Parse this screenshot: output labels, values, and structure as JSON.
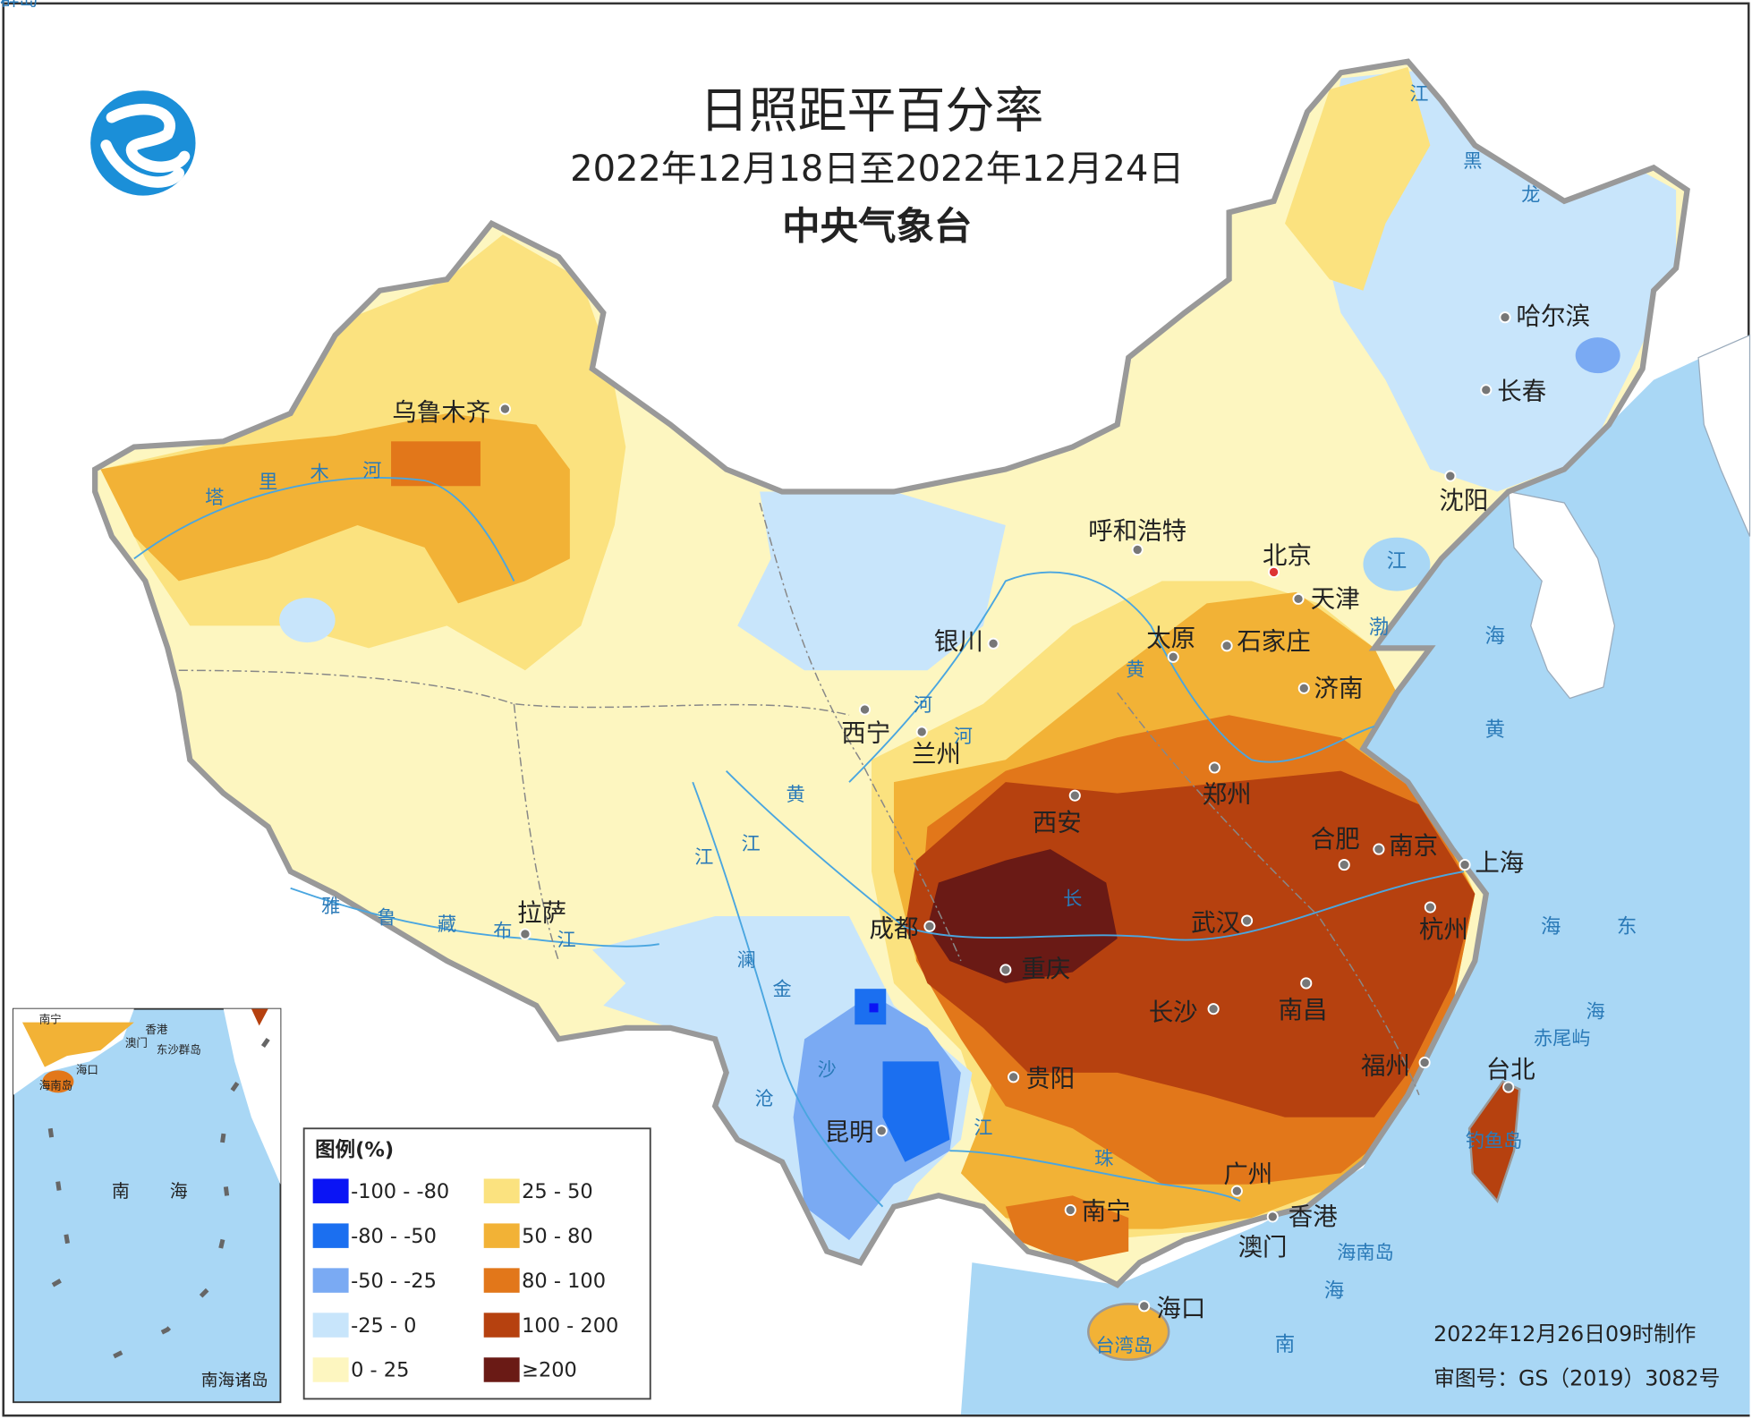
{
  "header": {
    "title": "日照距平百分率",
    "subtitle": "2022年12月18日至2022年12月24日",
    "agency": "中央气象台"
  },
  "cities": [
    "乌鲁木齐",
    "拉萨",
    "西宁",
    "兰州",
    "银川",
    "呼和浩特",
    "北京",
    "天津",
    "太原",
    "石家庄",
    "济南",
    "郑州",
    "西安",
    "合肥",
    "南京",
    "上海",
    "杭州",
    "武汉",
    "成都",
    "重庆",
    "长沙",
    "南昌",
    "福州",
    "台北",
    "贵阳",
    "昆明",
    "南宁",
    "广州",
    "香港",
    "澳门",
    "海口",
    "哈尔滨",
    "长春",
    "沈阳"
  ],
  "map_labels": [
    "塔",
    "里",
    "木",
    "河",
    "雅",
    "鲁",
    "藏",
    "布",
    "江",
    "黄",
    "河",
    "黄",
    "河",
    "长",
    "江",
    "澜",
    "沧",
    "江",
    "金",
    "沙",
    "江",
    "珠",
    "江",
    "黑",
    "龙",
    "江",
    "渤",
    "海",
    "黄",
    "海",
    "东",
    "海",
    "南",
    "海",
    "赤尾屿",
    "钓鱼岛",
    "台湾岛",
    "海南岛",
    "东沙群岛"
  ],
  "legend": {
    "title": "图例(%)",
    "items": [
      {
        "label": "-100 - -80",
        "color": "#0a14f5"
      },
      {
        "label": "-80 - -50",
        "color": "#1b6ff0"
      },
      {
        "label": "-50 - -25",
        "color": "#7aaaf3"
      },
      {
        "label": "-25 - 0",
        "color": "#c8e5fb"
      },
      {
        "label": "0 - 25",
        "color": "#fdf6c0"
      },
      {
        "label": "25 - 50",
        "color": "#fbe27f"
      },
      {
        "label": "50 - 80",
        "color": "#f2b236"
      },
      {
        "label": "80 - 100",
        "color": "#e2771a"
      },
      {
        "label": "100 - 200",
        "color": "#b6410f"
      },
      {
        "label": "≥200",
        "color": "#6a1a15"
      }
    ]
  },
  "inset": {
    "title": "南海诸岛",
    "labels": [
      "南宁",
      "香港",
      "澳门",
      "东沙群岛",
      "海口",
      "海南岛",
      "南",
      "海"
    ]
  },
  "footer": {
    "made": "2022年12月26日09时制作",
    "approval": "审图号：GS（2019）3082号"
  }
}
